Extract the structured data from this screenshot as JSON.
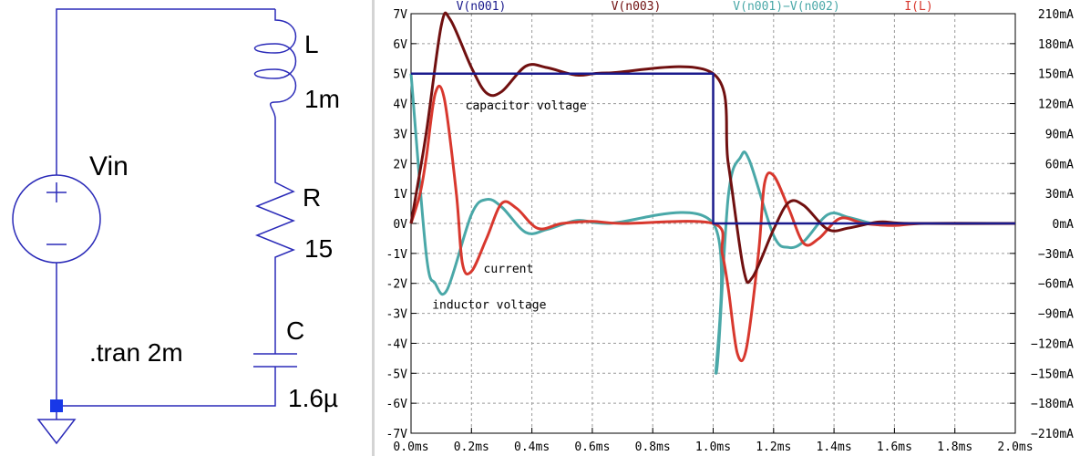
{
  "schematic": {
    "source_name": "Vin",
    "inductor_name": "L",
    "inductor_value": "1m",
    "resistor_name": "R",
    "resistor_value": "15",
    "capacitor_name": "C",
    "capacitor_value": "1.6µ",
    "directive": ".tran 2m",
    "wire_color": "#2a2ab8"
  },
  "chart_data": {
    "type": "line",
    "title": "",
    "xlabel": "",
    "ylabel": "",
    "xlim": [
      0,
      2.0
    ],
    "ylim": [
      -7,
      7
    ],
    "y2lim": [
      -210,
      210
    ],
    "grid": true,
    "legend_position": "top",
    "x_ticks": [
      "0.0ms",
      "0.2ms",
      "0.4ms",
      "0.6ms",
      "0.8ms",
      "1.0ms",
      "1.2ms",
      "1.4ms",
      "1.6ms",
      "1.8ms",
      "2.0ms"
    ],
    "y_ticks": [
      "7V",
      "6V",
      "5V",
      "4V",
      "3V",
      "2V",
      "1V",
      "0V",
      "-1V",
      "-2V",
      "-3V",
      "-4V",
      "-5V",
      "-6V",
      "-7V"
    ],
    "y2_ticks": [
      "210mA",
      "180mA",
      "150mA",
      "120mA",
      "90mA",
      "60mA",
      "30mA",
      "0mA",
      "−30mA",
      "−60mA",
      "−90mA",
      "−120mA",
      "−150mA",
      "−180mA",
      "−210mA"
    ],
    "series": [
      {
        "name": "V(n001)",
        "color": "#1a1a8c",
        "axis": "left",
        "x": [
          0,
          0.0001,
          1.0,
          1.0001,
          2.0
        ],
        "values": [
          5,
          5,
          5,
          0,
          0
        ]
      },
      {
        "name": "V(n003)",
        "color": "#701010",
        "axis": "left",
        "x": [
          0,
          0.05,
          0.1,
          0.13,
          0.2,
          0.25,
          0.3,
          0.38,
          0.45,
          0.55,
          0.65,
          1.0,
          1.05,
          1.1,
          1.13,
          1.2,
          1.25,
          1.3,
          1.38,
          1.45,
          1.55,
          1.65,
          2.0
        ],
        "values": [
          0,
          3.0,
          6.6,
          6.8,
          5.2,
          4.35,
          4.4,
          5.25,
          5.2,
          4.95,
          5.02,
          5.0,
          2.0,
          -1.5,
          -1.8,
          -0.2,
          0.7,
          0.6,
          -0.2,
          -0.15,
          0.05,
          0.0,
          0.0
        ]
      },
      {
        "name": "V(n001)−V(n002)",
        "color": "#4aa8a8",
        "axis": "left",
        "x": [
          0,
          0.05,
          0.08,
          0.12,
          0.2,
          0.25,
          0.3,
          0.38,
          0.45,
          0.55,
          0.65,
          1.0,
          1.01,
          1.05,
          1.09,
          1.12,
          1.2,
          1.25,
          1.3,
          1.38,
          1.45,
          1.55,
          1.65,
          2.0
        ],
        "values": [
          5,
          -1.0,
          -2.0,
          -2.2,
          0.3,
          0.8,
          0.55,
          -0.3,
          -0.2,
          0.1,
          0.0,
          0.0,
          -5.0,
          0.9,
          2.2,
          2.1,
          -0.4,
          -0.8,
          -0.6,
          0.3,
          0.2,
          -0.05,
          0.0,
          0.0
        ]
      },
      {
        "name": "I(L)",
        "color": "#d8382e",
        "axis": "right",
        "x": [
          0,
          0.03,
          0.05,
          0.08,
          0.11,
          0.15,
          0.17,
          0.2,
          0.25,
          0.3,
          0.35,
          0.42,
          0.5,
          0.6,
          0.7,
          1.0,
          1.03,
          1.05,
          1.08,
          1.11,
          1.15,
          1.17,
          1.2,
          1.25,
          1.3,
          1.35,
          1.42,
          1.5,
          1.6,
          1.7,
          2.0
        ],
        "values": [
          0,
          30,
          65,
          130,
          125,
          30,
          -40,
          -48,
          -15,
          20,
          15,
          -5,
          0,
          2,
          0,
          0,
          -30,
          -65,
          -130,
          -125,
          -30,
          40,
          48,
          15,
          -20,
          -15,
          5,
          0,
          -2,
          0,
          0
        ]
      }
    ],
    "annotations": [
      {
        "text": "capacitor voltage",
        "x": 0.18,
        "y": 3.8
      },
      {
        "text": "current",
        "x": 0.24,
        "y": -1.65
      },
      {
        "text": "inductor voltage",
        "x": 0.07,
        "y": -2.85
      }
    ]
  }
}
